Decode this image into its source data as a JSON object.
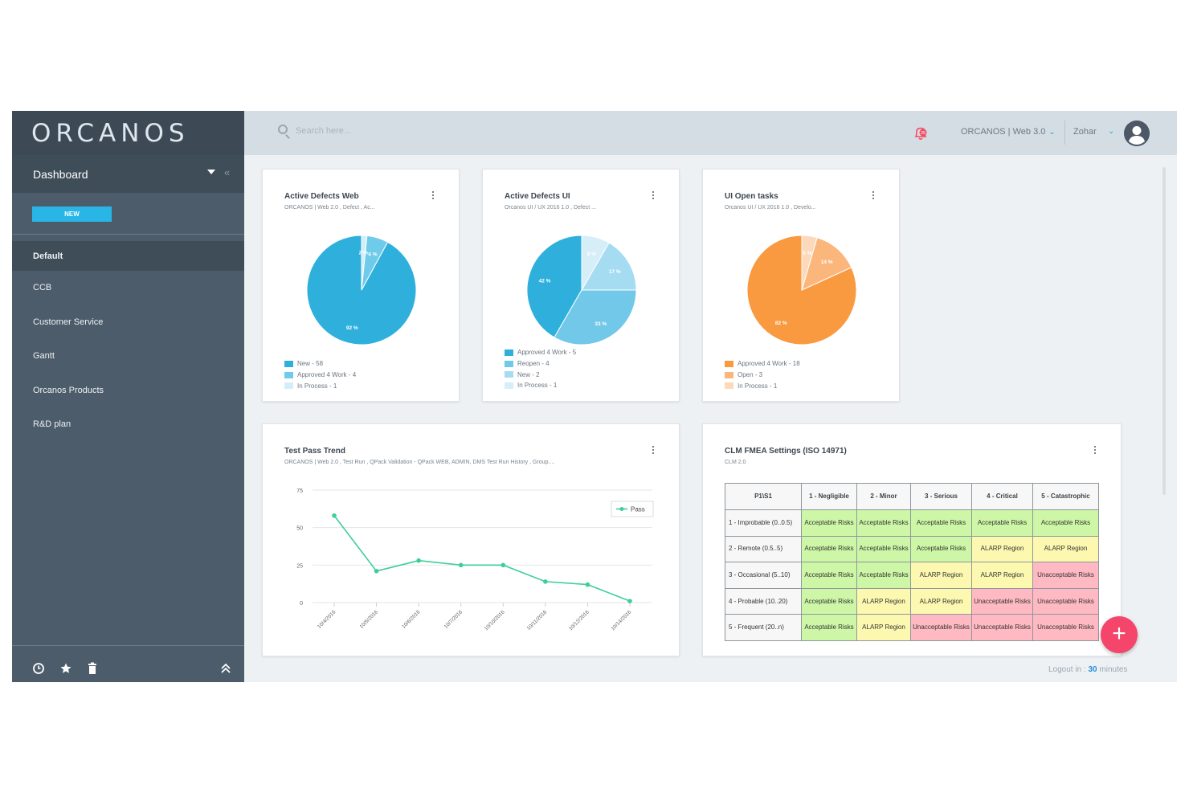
{
  "app": {
    "logo": "ORCANOS"
  },
  "sidebar": {
    "dashboard_label": "Dashboard",
    "collapse_glyph": "«",
    "new_label": "NEW",
    "items": [
      {
        "label": "Default"
      },
      {
        "label": "CCB"
      },
      {
        "label": "Customer Service"
      },
      {
        "label": "Gantt"
      },
      {
        "label": "Orcanos Products"
      },
      {
        "label": "R&D plan"
      }
    ],
    "bottom_icons": [
      "clock-icon",
      "star-icon",
      "trash-icon",
      "double-chevron-up-icon"
    ]
  },
  "topbar": {
    "search_placeholder": "Search here...",
    "notification_count": "25",
    "project": "ORCANOS | Web 3.0",
    "user": "Zohar"
  },
  "cards": {
    "active_defects_web": {
      "title": "Active Defects Web",
      "subtitle": "ORCANOS | Web 2.0 , Defect , Ac...",
      "menu_icon": "more-vertical-icon"
    },
    "active_defects_ui": {
      "title": "Active Defects UI",
      "subtitle": "Orcanos UI / UX 2016 1.0 , Defect ...",
      "menu_icon": "more-vertical-icon"
    },
    "ui_open_tasks": {
      "title": "UI Open tasks",
      "subtitle": "Orcanos UI / UX 2016 1.0 , Develo...",
      "menu_icon": "more-vertical-icon"
    },
    "test_pass_trend": {
      "title": "Test Pass Trend",
      "subtitle": "ORCANOS | Web 2.0 , Test Run , QPack Validation - QPack WEB, ADMIN, DMS Test Run History , Group....",
      "menu_icon": "more-vertical-icon"
    },
    "fmea": {
      "title": "CLM FMEA Settings (ISO 14971)",
      "subtitle": "CLM 2.0",
      "menu_icon": "more-vertical-icon",
      "header": [
        "P1\\S1",
        "1 - Negligible",
        "2 - Minor",
        "3 - Serious",
        "4 - Critical",
        "5 - Catastrophic"
      ],
      "rows": [
        {
          "label": "1 - Improbable (0..0.5)",
          "cells": [
            {
              "text": "Acceptable Risks",
              "level": "g"
            },
            {
              "text": "Acceptable Risks",
              "level": "g"
            },
            {
              "text": "Acceptable Risks",
              "level": "g"
            },
            {
              "text": "Acceptable Risks",
              "level": "g"
            },
            {
              "text": "Acceptable Risks",
              "level": "g"
            }
          ]
        },
        {
          "label": "2 - Remote (0.5..5)",
          "cells": [
            {
              "text": "Acceptable Risks",
              "level": "g"
            },
            {
              "text": "Acceptable Risks",
              "level": "g"
            },
            {
              "text": "Acceptable Risks",
              "level": "g"
            },
            {
              "text": "ALARP Region",
              "level": "y"
            },
            {
              "text": "ALARP Region",
              "level": "y"
            }
          ]
        },
        {
          "label": "3 - Occasional (5..10)",
          "cells": [
            {
              "text": "Acceptable Risks",
              "level": "g"
            },
            {
              "text": "Acceptable Risks",
              "level": "g"
            },
            {
              "text": "ALARP Region",
              "level": "y"
            },
            {
              "text": "ALARP Region",
              "level": "y"
            },
            {
              "text": "Unacceptable Risks",
              "level": "r"
            }
          ]
        },
        {
          "label": "4 - Probable (10..20)",
          "cells": [
            {
              "text": "Acceptable Risks",
              "level": "g"
            },
            {
              "text": "ALARP Region",
              "level": "y"
            },
            {
              "text": "ALARP Region",
              "level": "y"
            },
            {
              "text": "Unacceptable Risks",
              "level": "r"
            },
            {
              "text": "Unacceptable Risks",
              "level": "r"
            }
          ]
        },
        {
          "label": "5 - Frequent (20..n)",
          "cells": [
            {
              "text": "Acceptable Risks",
              "level": "g"
            },
            {
              "text": "ALARP Region",
              "level": "y"
            },
            {
              "text": "Unacceptable Risks",
              "level": "r"
            },
            {
              "text": "Unacceptable Risks",
              "level": "r"
            },
            {
              "text": "Unacceptable Risks",
              "level": "r"
            }
          ]
        }
      ],
      "colors": {
        "g": "#cdf7a6",
        "y": "#fdf8b0",
        "r": "#ffb9c2"
      }
    }
  },
  "chart_data": [
    {
      "type": "pie",
      "title": "Active Defects Web",
      "slices": [
        {
          "label": "New - 58",
          "value": 58,
          "pct_label": "92 %",
          "color": "#2fb0dc"
        },
        {
          "label": "Approved 4 Work - 4",
          "value": 4,
          "pct_label": "6 %",
          "color": "#6fcbea"
        },
        {
          "label": "In Process - 1",
          "value": 1,
          "pct_label": "2 %",
          "color": "#d3eef8"
        }
      ]
    },
    {
      "type": "pie",
      "title": "Active Defects UI",
      "slices": [
        {
          "label": "Approved 4 Work - 5",
          "value": 5,
          "pct_label": "42 %",
          "color": "#2fb0dc"
        },
        {
          "label": "Reopen - 4",
          "value": 4,
          "pct_label": "33 %",
          "color": "#72c8e8"
        },
        {
          "label": "New - 2",
          "value": 2,
          "pct_label": "17 %",
          "color": "#a6dcf1"
        },
        {
          "label": "In Process - 1",
          "value": 1,
          "pct_label": "8 %",
          "color": "#d6eef8"
        }
      ]
    },
    {
      "type": "pie",
      "title": "UI Open tasks",
      "slices": [
        {
          "label": "Approved 4 Work - 18",
          "value": 18,
          "pct_label": "82 %",
          "color": "#f99a40"
        },
        {
          "label": "Open - 3",
          "value": 3,
          "pct_label": "14 %",
          "color": "#fbb67b"
        },
        {
          "label": "In Process - 1",
          "value": 1,
          "pct_label": "5 %",
          "color": "#fdd9bb"
        }
      ]
    },
    {
      "type": "line",
      "title": "Test Pass Trend",
      "x": [
        "10/4/2016",
        "10/5/2016",
        "10/6/2016",
        "10/7/2016",
        "10/10/2016",
        "10/11/2016",
        "10/12/2016",
        "10/14/2016"
      ],
      "series": [
        {
          "name": "Pass",
          "values": [
            58,
            21,
            28,
            25,
            25,
            14,
            12,
            1
          ],
          "color": "#3ecf98"
        }
      ],
      "yticks": [
        0,
        25,
        50,
        75
      ],
      "ylim": [
        0,
        75
      ],
      "legend": "top-right",
      "grid": true
    }
  ],
  "footer": {
    "logout_prefix": "Logout in :",
    "logout_value": "30",
    "logout_suffix": "minutes"
  }
}
